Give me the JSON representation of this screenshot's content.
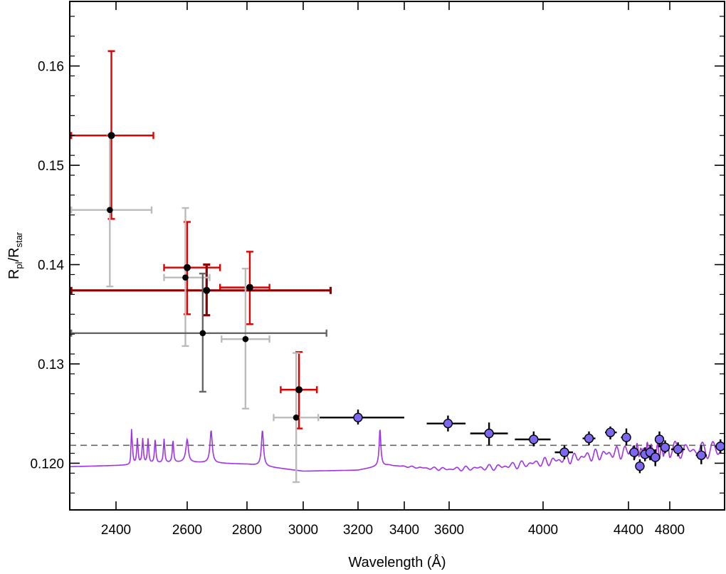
{
  "chart_data": {
    "type": "scatter",
    "title": "",
    "xlabel": "Wavelength (Å)",
    "ylabel": {
      "base": "R",
      "sub1": "pl",
      "sep": "/R",
      "sub2": "star"
    },
    "xlim": [
      2250,
      5000
    ],
    "ylim": [
      0.1153,
      0.1665
    ],
    "x_ticks": [
      2400,
      2600,
      2800,
      3000,
      3200,
      3400,
      3600,
      4000,
      4400,
      4800
    ],
    "y_ticks": [
      0.12,
      0.13,
      0.14,
      0.15,
      0.16
    ],
    "y_tick_labels": [
      "0.120",
      "0.13",
      "0.14",
      "0.15",
      "0.16"
    ],
    "grid": false,
    "reference_line": {
      "y": 0.1218,
      "style": "dashed",
      "color": "#666666"
    },
    "series": [
      {
        "color": "#e00000",
        "marker": "filled-circle-black",
        "points": [
          {
            "x": 2385,
            "y": 0.153,
            "xerr": [
              2255,
              2505
            ],
            "yerr": [
              0.1446,
              0.1615
            ]
          },
          {
            "x": 2600,
            "y": 0.1397,
            "xerr": [
              2535,
              2710
            ],
            "yerr": [
              0.135,
              0.1443
            ]
          },
          {
            "x": 2810,
            "y": 0.1377,
            "xerr": [
              2710,
              2880
            ],
            "yerr": [
              0.134,
              0.1413
            ]
          },
          {
            "x": 2985,
            "y": 0.1274,
            "xerr": [
              2920,
              3050
            ],
            "yerr": [
              0.1235,
              0.1312
            ]
          }
        ]
      },
      {
        "color": "#8b0000",
        "marker": "filled-circle-black",
        "points": [
          {
            "x": 2665,
            "y": 0.1374,
            "xerr": [
              2255,
              3100
            ],
            "yerr": [
              0.1349,
              0.14
            ]
          }
        ]
      },
      {
        "color": "#bbbbbb",
        "marker": "filled-circle-black",
        "points": [
          {
            "x": 2380,
            "y": 0.1455,
            "xerr": [
              2255,
              2500
            ],
            "yerr": [
              0.1378,
              0.1531
            ]
          },
          {
            "x": 2595,
            "y": 0.1387,
            "xerr": [
              2535,
              2675
            ],
            "yerr": [
              0.1318,
              0.1457
            ]
          },
          {
            "x": 2795,
            "y": 0.1325,
            "xerr": [
              2715,
              2880
            ],
            "yerr": [
              0.1255,
              0.1396
            ]
          },
          {
            "x": 2975,
            "y": 0.1246,
            "xerr": [
              2895,
              3055
            ],
            "yerr": [
              0.1181,
              0.1311
            ]
          }
        ]
      },
      {
        "color": "#666666",
        "marker": "filled-circle-black",
        "points": [
          {
            "x": 2652,
            "y": 0.1331,
            "xerr": [
              2255,
              3085
            ],
            "yerr": [
              0.1272,
              0.1391
            ]
          }
        ]
      },
      {
        "color": "#000000",
        "marker": "filled-circle-blue",
        "fill": "#7b68ee",
        "points": [
          {
            "x": 3200,
            "y": 0.1246,
            "xerr": [
              3060,
              3400
            ],
            "yerr": [
              0.1239,
              0.1254
            ]
          },
          {
            "x": 3595,
            "y": 0.124,
            "xerr": [
              3500,
              3670
            ],
            "yerr": [
              0.1232,
              0.1248
            ]
          },
          {
            "x": 3770,
            "y": 0.123,
            "xerr": [
              3690,
              3850
            ],
            "yerr": [
              0.1218,
              0.1241
            ]
          },
          {
            "x": 3960,
            "y": 0.1224,
            "xerr": [
              3880,
              4035
            ],
            "yerr": [
              0.1217,
              0.1232
            ]
          },
          {
            "x": 4100,
            "y": 0.1211,
            "xerr": [
              4055,
              4140
            ],
            "yerr": [
              0.1204,
              0.1218
            ]
          },
          {
            "x": 4215,
            "y": 0.1225,
            "xerr": [
              4185,
              4245
            ],
            "yerr": [
              0.1218,
              0.1232
            ]
          },
          {
            "x": 4315,
            "y": 0.1231,
            "xerr": [
              4290,
              4345
            ],
            "yerr": [
              0.1224,
              0.1237
            ]
          },
          {
            "x": 4390,
            "y": 0.1226,
            "xerr": [
              4365,
              4415
            ],
            "yerr": [
              0.1218,
              0.1235
            ]
          },
          {
            "x": 4455,
            "y": 0.1211,
            "xerr": [
              4430,
              4480
            ],
            "yerr": [
              0.1203,
              0.1218
            ]
          },
          {
            "x": 4510,
            "y": 0.1197,
            "xerr": [
              4495,
              4525
            ],
            "yerr": [
              0.119,
              0.1204
            ]
          },
          {
            "x": 4560,
            "y": 0.1209,
            "xerr": [
              4540,
              4580
            ],
            "yerr": [
              0.1202,
              0.1216
            ]
          },
          {
            "x": 4610,
            "y": 0.1211,
            "xerr": [
              4590,
              4630
            ],
            "yerr": [
              0.1203,
              0.1218
            ]
          },
          {
            "x": 4660,
            "y": 0.1206,
            "xerr": [
              4645,
              4675
            ],
            "yerr": [
              0.1197,
              0.1214
            ]
          },
          {
            "x": 4700,
            "y": 0.1224,
            "xerr": [
              4685,
              4715
            ],
            "yerr": [
              0.1216,
              0.1232
            ]
          },
          {
            "x": 4755,
            "y": 0.1216,
            "xerr": [
              4735,
              4775
            ],
            "yerr": [
              0.121,
              0.1223
            ]
          },
          {
            "x": 4830,
            "y": 0.1214,
            "xerr": [
              4805,
              4855
            ],
            "yerr": [
              0.1207,
              0.1221
            ]
          },
          {
            "x": 4915,
            "y": 0.1208,
            "xerr": [
              4895,
              4935
            ],
            "yerr": [
              0.1199,
              0.1218
            ]
          },
          {
            "x": 4985,
            "y": 0.1217,
            "xerr": [
              4965,
              5000
            ],
            "yerr": [
              0.121,
              0.1224
            ]
          }
        ]
      }
    ],
    "model_spectrum": {
      "color": "#a033e8",
      "description_points": [
        [
          2250,
          0.11965
        ],
        [
          2430,
          0.1198
        ],
        [
          2445,
          0.1224
        ],
        [
          2460,
          0.1203
        ],
        [
          2600,
          0.1201
        ],
        [
          2800,
          0.1199
        ],
        [
          3000,
          0.1192
        ],
        [
          3200,
          0.1193
        ],
        [
          3290,
          0.1197
        ],
        [
          3330,
          0.1198
        ],
        [
          3500,
          0.1195
        ],
        [
          3600,
          0.1194
        ],
        [
          3800,
          0.1196
        ],
        [
          4000,
          0.1201
        ],
        [
          4200,
          0.1207
        ],
        [
          4400,
          0.1212
        ],
        [
          4600,
          0.1213
        ],
        [
          4800,
          0.1213
        ],
        [
          5000,
          0.1214
        ]
      ],
      "peaks": [
        {
          "x": 2445,
          "y": 0.1224
        },
        {
          "x": 2460,
          "y": 0.1224
        },
        {
          "x": 2475,
          "y": 0.1224
        },
        {
          "x": 2490,
          "y": 0.1224
        },
        {
          "x": 2510,
          "y": 0.1224
        },
        {
          "x": 2535,
          "y": 0.1224
        },
        {
          "x": 2560,
          "y": 0.1223
        },
        {
          "x": 2600,
          "y": 0.1224
        },
        {
          "x": 2680,
          "y": 0.1233
        },
        {
          "x": 2855,
          "y": 0.1233
        },
        {
          "x": 3295,
          "y": 0.1234
        }
      ]
    }
  }
}
